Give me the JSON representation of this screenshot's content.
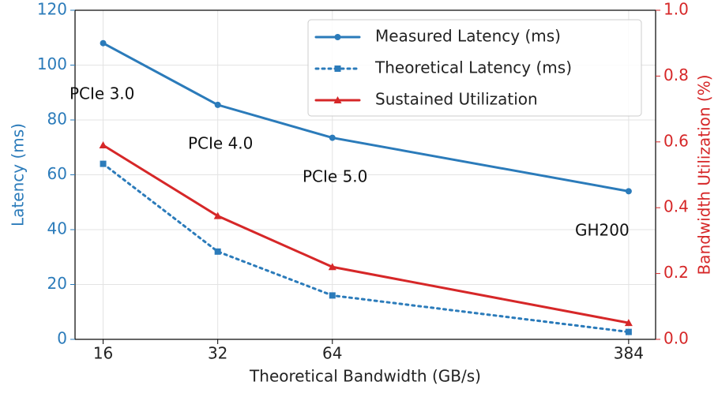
{
  "chart_data": {
    "type": "line",
    "xlabel": "Theoretical Bandwidth (GB/s)",
    "ylabel": "Latency (ms)",
    "y2label": "Bandwidth Utilization (%)",
    "xscale": "log2",
    "x": [
      16,
      32,
      64,
      384
    ],
    "xlim": [
      13.5,
      452
    ],
    "xticks": [
      16,
      32,
      64,
      384
    ],
    "ylim": [
      0,
      120
    ],
    "yticks": [
      0,
      20,
      40,
      60,
      80,
      100,
      120
    ],
    "y2lim": [
      0,
      1
    ],
    "y2ticks": [
      {
        "value": 0,
        "label": "0.0"
      },
      0.2,
      0.4,
      0.6,
      0.8,
      {
        "value": 1,
        "label": "1.0"
      }
    ],
    "grid": true,
    "legend": "upper right",
    "ycolor": "#2b7bba",
    "y2color": "#d62728",
    "series": [
      {
        "name": "Measured Latency (ms)",
        "color": "#2b7bba",
        "style": "solid",
        "marker": "circle",
        "values": [
          108,
          85.5,
          73.5,
          54
        ]
      },
      {
        "name": "Theoretical Latency (ms)",
        "color": "#2b7bba",
        "style": "dotted",
        "marker": "square",
        "values": [
          64,
          32,
          16,
          2.7
        ]
      },
      {
        "name": "Sustained Utilization",
        "color": "#d62728",
        "style": "solid",
        "marker": "triangle",
        "axis": "y2",
        "values": [
          0.59,
          0.375,
          0.22,
          0.05
        ]
      }
    ],
    "annotations": [
      "PCIe 3.0",
      "PCIe 4.0",
      "PCIe 5.0",
      "GH200"
    ]
  }
}
